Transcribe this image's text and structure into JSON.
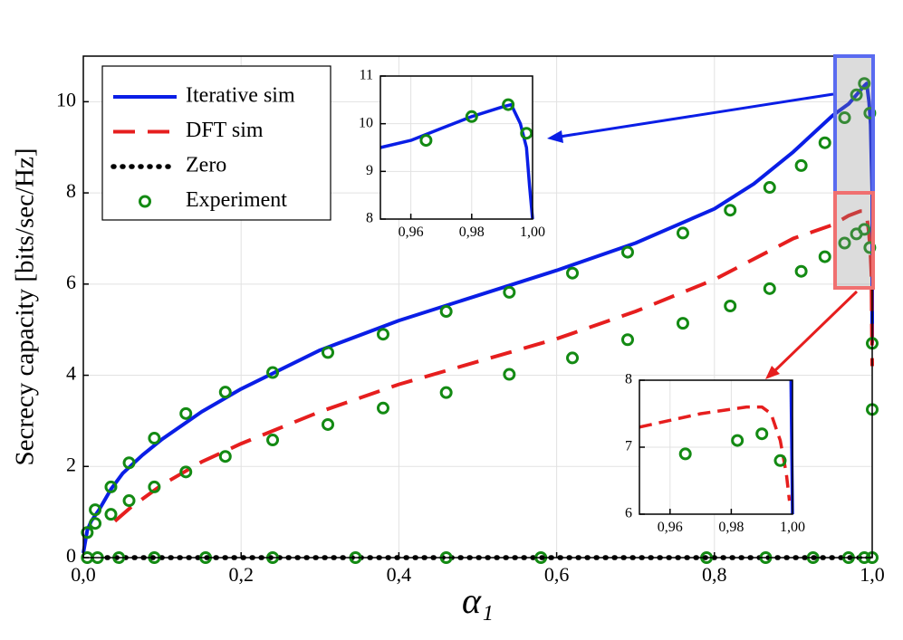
{
  "chart_data": [
    {
      "type": "line",
      "ylabel": "Secrecy capacity [bits/sec/Hz]",
      "xlabel": "α₁",
      "xlim": [
        0,
        1
      ],
      "ylim": [
        0,
        11
      ],
      "xticks": [
        {
          "value": 0,
          "label": "0,0"
        },
        {
          "value": 0.2,
          "label": "0,2"
        },
        {
          "value": 0.4,
          "label": "0,4"
        },
        {
          "value": 0.6,
          "label": "0,6"
        },
        {
          "value": 0.8,
          "label": "0,8"
        },
        {
          "value": 1,
          "label": "1,0"
        }
      ],
      "yticks": [
        0,
        2,
        4,
        6,
        8,
        10
      ],
      "grid": true,
      "legend": "upper left",
      "series": [
        {
          "name": "Iterative sim",
          "color": "#0a1ee6",
          "style": "solid",
          "x": [
            0,
            0.005,
            0.01,
            0.02,
            0.035,
            0.05,
            0.075,
            0.1,
            0.15,
            0.2,
            0.3,
            0.4,
            0.5,
            0.6,
            0.7,
            0.8,
            0.85,
            0.9,
            0.95,
            0.97,
            0.98,
            0.99,
            0.993,
            0.996,
            0.998,
            0.999,
            1.0,
            1.0
          ],
          "values": [
            0.1,
            0.6,
            0.8,
            1.05,
            1.5,
            1.85,
            2.25,
            2.6,
            3.2,
            3.7,
            4.55,
            5.2,
            5.75,
            6.3,
            6.9,
            7.65,
            8.2,
            8.9,
            9.7,
            9.95,
            10.15,
            10.35,
            10.4,
            10.0,
            9.5,
            8.7,
            8.0,
            4.7
          ]
        },
        {
          "name": "DFT sim",
          "color": "#e61e1e",
          "style": "dashed",
          "x": [
            0.04,
            0.06,
            0.1,
            0.15,
            0.2,
            0.3,
            0.4,
            0.5,
            0.6,
            0.7,
            0.8,
            0.9,
            0.95,
            0.97,
            0.985,
            0.99,
            0.993,
            0.996,
            0.998,
            0.999,
            1.0
          ],
          "values": [
            0.8,
            1.1,
            1.6,
            2.1,
            2.5,
            3.2,
            3.8,
            4.3,
            4.8,
            5.4,
            6.1,
            7.0,
            7.3,
            7.5,
            7.6,
            7.6,
            7.5,
            7.1,
            6.6,
            6.2,
            4.2
          ]
        },
        {
          "name": "Zero",
          "color": "#000000",
          "style": "dotted",
          "x": [
            0.03,
            1.0
          ],
          "values": [
            0,
            0
          ]
        },
        {
          "name": "Experiment",
          "color": "#138a13",
          "style": "markers",
          "x": [
            0.005,
            0.015,
            0.035,
            0.058,
            0.09,
            0.13,
            0.18,
            0.24,
            0.31,
            0.38,
            0.46,
            0.54,
            0.62,
            0.69,
            0.76,
            0.82,
            0.87,
            0.91,
            0.94,
            0.965,
            0.98,
            0.99,
            0.997,
            1.0,
            1.0,
            0.015,
            0.035,
            0.058,
            0.09,
            0.13,
            0.18,
            0.24,
            0.31,
            0.38,
            0.46,
            0.54,
            0.62,
            0.69,
            0.76,
            0.82,
            0.87,
            0.91,
            0.94,
            0.965,
            0.98,
            0.99,
            0.997,
            0.005,
            0.018,
            0.045,
            0.09,
            0.155,
            0.24,
            0.345,
            0.46,
            0.58,
            0.79,
            0.865,
            0.925,
            0.97,
            0.99,
            1.0
          ],
          "values": [
            0.55,
            1.05,
            1.55,
            2.08,
            2.62,
            3.16,
            3.63,
            4.06,
            4.5,
            4.9,
            5.4,
            5.82,
            6.24,
            6.7,
            7.12,
            7.62,
            8.12,
            8.6,
            9.1,
            9.65,
            10.15,
            10.4,
            9.75,
            4.7,
            3.25,
            0.75,
            0.95,
            1.25,
            1.55,
            1.88,
            2.22,
            2.58,
            2.92,
            3.28,
            3.62,
            4.02,
            4.38,
            4.78,
            5.14,
            5.52,
            5.9,
            6.28,
            6.6,
            6.9,
            7.1,
            7.2,
            6.8,
            0,
            0,
            0,
            0,
            0,
            0,
            0,
            0,
            0,
            0,
            0,
            0,
            0,
            0,
            0
          ]
        }
      ]
    },
    {
      "type": "line",
      "xlim": [
        0.95,
        1.0
      ],
      "ylim": [
        8,
        11
      ],
      "xticks": [
        {
          "value": 0.96,
          "label": "0,96"
        },
        {
          "value": 0.98,
          "label": "0,98"
        },
        {
          "value": 1.0,
          "label": "1,00"
        }
      ],
      "yticks": [
        8,
        9,
        10,
        11
      ],
      "grid": true,
      "series": [
        {
          "color": "#0a1ee6",
          "style": "solid",
          "x": [
            0.95,
            0.96,
            0.97,
            0.98,
            0.99,
            0.993,
            0.996,
            0.998,
            0.999,
            1.0
          ],
          "values": [
            9.5,
            9.65,
            9.9,
            10.15,
            10.35,
            10.4,
            10.0,
            9.5,
            8.7,
            8.0
          ]
        },
        {
          "color": "#138a13",
          "style": "markers",
          "x": [
            0.965,
            0.98,
            0.992,
            0.998
          ],
          "values": [
            9.65,
            10.15,
            10.4,
            9.8
          ]
        }
      ]
    },
    {
      "type": "line",
      "xlim": [
        0.95,
        1.0
      ],
      "ylim": [
        6,
        8
      ],
      "xticks": [
        {
          "value": 0.96,
          "label": "0,96"
        },
        {
          "value": 0.98,
          "label": "0,98"
        },
        {
          "value": 1.0,
          "label": "1,00"
        }
      ],
      "yticks": [
        6,
        7,
        8
      ],
      "grid": true,
      "series": [
        {
          "color": "#e61e1e",
          "style": "dashed",
          "x": [
            0.95,
            0.97,
            0.985,
            0.99,
            0.993,
            0.996,
            0.998,
            0.999
          ],
          "values": [
            7.3,
            7.5,
            7.6,
            7.6,
            7.5,
            7.1,
            6.6,
            6.2
          ]
        },
        {
          "color": "#0a1ee6",
          "style": "solid",
          "x": [
            0.9995,
            1.0
          ],
          "values": [
            8,
            6
          ]
        },
        {
          "color": "#138a13",
          "style": "markers",
          "x": [
            0.965,
            0.982,
            0.99,
            0.996
          ],
          "values": [
            6.9,
            7.1,
            7.2,
            6.8
          ]
        }
      ]
    }
  ]
}
